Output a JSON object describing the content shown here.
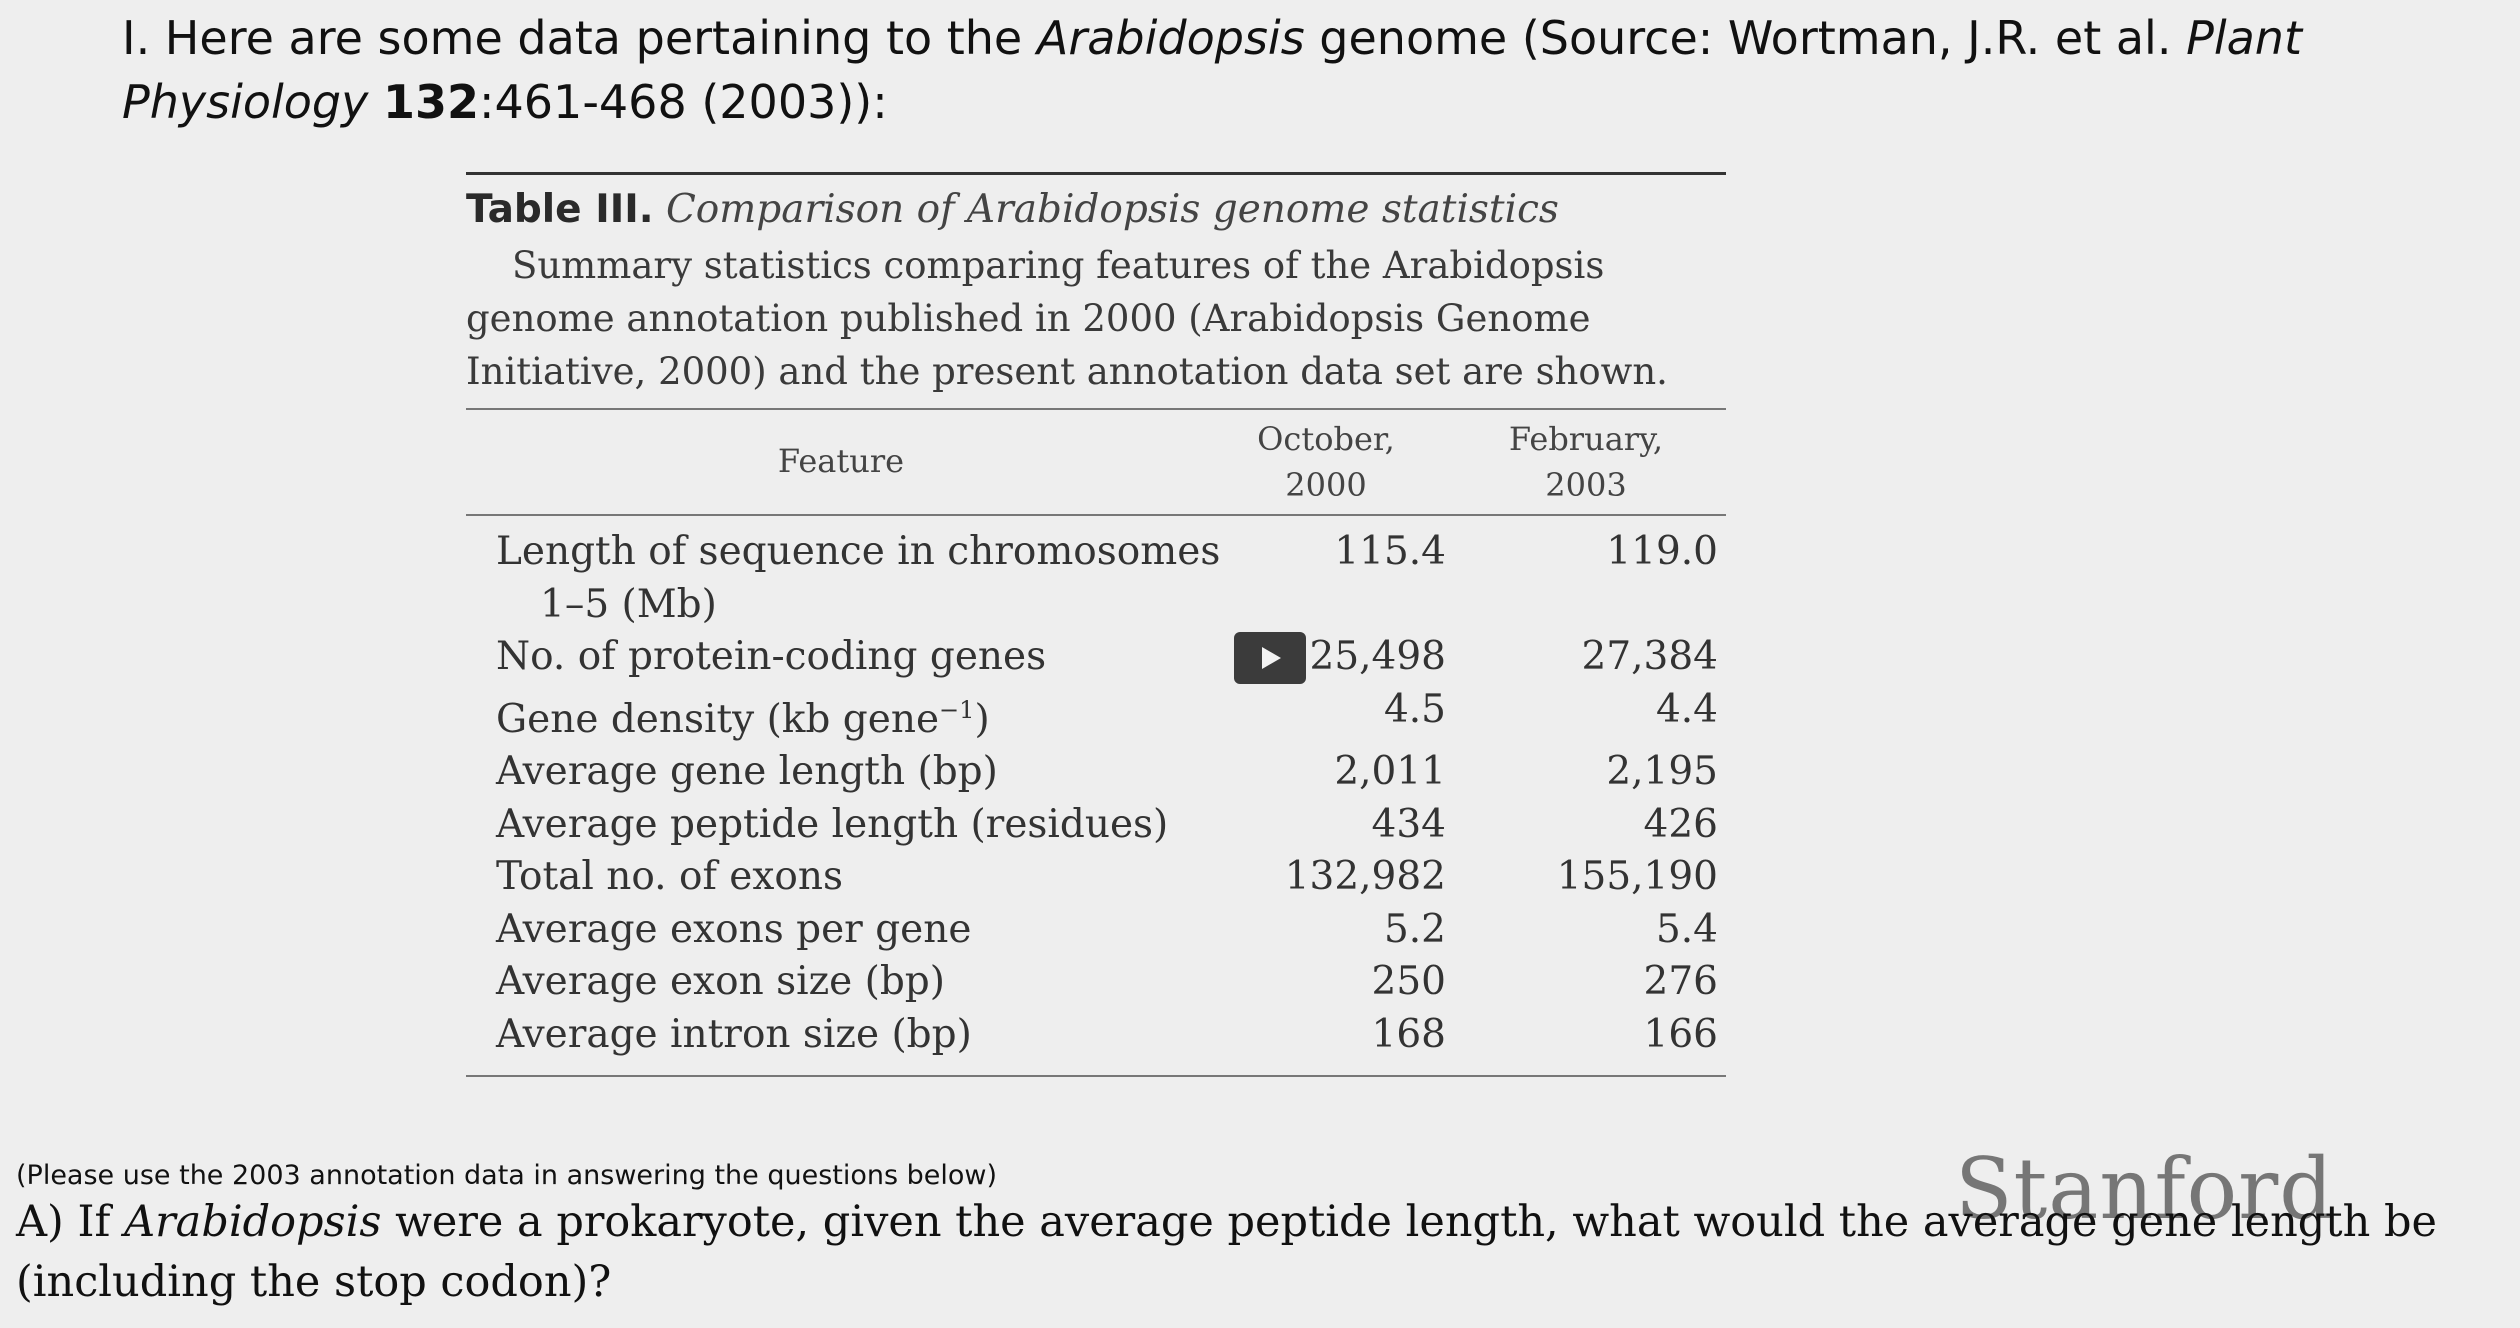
{
  "intro": {
    "prefix": "I. Here are some data pertaining to the ",
    "organism": "Arabidopsis",
    "middle": " genome (Source: Wortman, J.R. et al. ",
    "journal": "Plant Physiology",
    "space": " ",
    "volume": "132",
    "pages": ":461-468 (2003)):"
  },
  "table": {
    "label": "Table III.",
    "title": "Comparison of Arabidopsis genome statistics",
    "summary": "Summary statistics comparing features of the Arabidopsis genome annotation published in 2000 (Arabidopsis Genome Initiative, 2000) and the present annotation data set are shown.",
    "headers": {
      "feature": "Feature",
      "col1_line1": "October,",
      "col1_line2": "2000",
      "col2_line1": "February,",
      "col2_line2": "2003"
    },
    "rows": [
      {
        "feature": "Length of sequence in chromosomes",
        "feature_cont": "1–5 (Mb)",
        "oct_2000": "115.4",
        "feb_2003": "119.0"
      },
      {
        "feature": "No. of protein-coding genes",
        "oct_2000": "25,498",
        "feb_2003": "27,384"
      },
      {
        "feature": "Gene density (kb gene",
        "feature_sup": "−1",
        "feature_end": ")",
        "oct_2000": "4.5",
        "feb_2003": "4.4"
      },
      {
        "feature": "Average gene length (bp)",
        "oct_2000": "2,011",
        "feb_2003": "2,195"
      },
      {
        "feature": "Average peptide length (residues)",
        "oct_2000": "434",
        "feb_2003": "426"
      },
      {
        "feature": "Total no. of exons",
        "oct_2000": "132,982",
        "feb_2003": "155,190"
      },
      {
        "feature": "Average exons per gene",
        "oct_2000": "5.2",
        "feb_2003": "5.4"
      },
      {
        "feature": "Average exon size (bp)",
        "oct_2000": "250",
        "feb_2003": "276"
      },
      {
        "feature": "Average intron size (bp)",
        "oct_2000": "168",
        "feb_2003": "166"
      }
    ]
  },
  "note": "(Please use the 2003 annotation data in answering the questions below)",
  "question": {
    "prefix": "A) If ",
    "organism": "Arabidopsis",
    "text": " were a prokaryote, given the average peptide length, what would the average gene length be (including the stop codon)?"
  },
  "watermark": "Stanford",
  "player": {
    "icon": "play-icon"
  }
}
